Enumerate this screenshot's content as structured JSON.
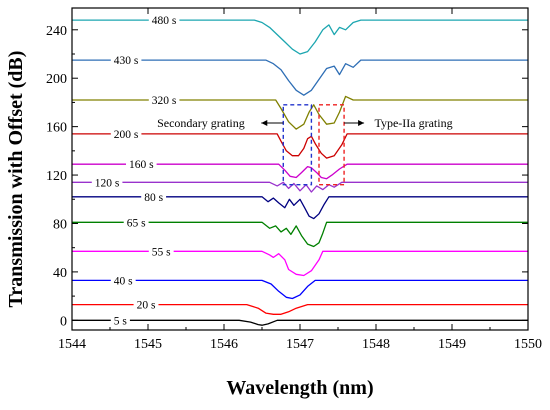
{
  "chart_data": {
    "type": "line",
    "title": "",
    "xlabel": "Wavelength (nm)",
    "ylabel": "Transmission with Offset (dB)",
    "xlim": [
      1544,
      1550
    ],
    "ylim": [
      -8,
      258
    ],
    "xticks": [
      1544,
      1545,
      1546,
      1547,
      1548,
      1549,
      1550
    ],
    "yticks": [
      0,
      40,
      80,
      120,
      160,
      200,
      240
    ],
    "grid": false,
    "legend": "none",
    "series": [
      {
        "name": "5 s",
        "color": "#000000",
        "baseline": 0,
        "label_x": 1544.55,
        "x": [
          1544.0,
          1546.2,
          1546.35,
          1546.45,
          1546.5,
          1546.58,
          1546.7,
          1550.0
        ],
        "y": [
          0,
          0,
          -1.5,
          -3.5,
          -4,
          -3,
          0,
          0
        ]
      },
      {
        "name": "20 s",
        "color": "#ff0000",
        "baseline": 13,
        "label_x": 1544.85,
        "x": [
          1544.0,
          1546.3,
          1546.45,
          1546.55,
          1546.65,
          1546.75,
          1546.85,
          1546.95,
          1547.1,
          1550.0
        ],
        "y": [
          13,
          13,
          10,
          6,
          5,
          5,
          7,
          10,
          13,
          13
        ]
      },
      {
        "name": "40 s",
        "color": "#0000ff",
        "baseline": 33,
        "label_x": 1544.55,
        "x": [
          1544.0,
          1546.5,
          1546.62,
          1546.72,
          1546.82,
          1546.9,
          1547.0,
          1547.1,
          1547.2,
          1550.0
        ],
        "y": [
          33,
          33,
          30,
          24,
          19,
          18,
          21,
          28,
          33,
          33
        ]
      },
      {
        "name": "55 s",
        "color": "#ff00ff",
        "baseline": 57,
        "label_x": 1545.05,
        "x": [
          1544.0,
          1546.5,
          1546.6,
          1546.65,
          1546.72,
          1546.8,
          1546.85,
          1546.95,
          1547.05,
          1547.15,
          1547.25,
          1547.3,
          1550.0
        ],
        "y": [
          57,
          57,
          54,
          52,
          55,
          50,
          42,
          38,
          37,
          41,
          50,
          57,
          57
        ]
      },
      {
        "name": "65 s",
        "color": "#008000",
        "baseline": 81,
        "label_x": 1544.72,
        "x": [
          1544.0,
          1546.5,
          1546.6,
          1546.68,
          1546.75,
          1546.82,
          1546.88,
          1546.95,
          1547.02,
          1547.1,
          1547.18,
          1547.25,
          1547.3,
          1547.35,
          1550.0
        ],
        "y": [
          81,
          81,
          76,
          78,
          73,
          76,
          71,
          78,
          70,
          63,
          61,
          64,
          72,
          81,
          81
        ]
      },
      {
        "name": "80 s",
        "color": "#000080",
        "baseline": 102,
        "label_x": 1544.95,
        "x": [
          1544.0,
          1546.5,
          1546.58,
          1546.65,
          1546.72,
          1546.8,
          1546.86,
          1546.92,
          1547.0,
          1547.06,
          1547.12,
          1547.18,
          1547.25,
          1547.32,
          1547.38,
          1550.0
        ],
        "y": [
          102,
          102,
          98,
          101,
          97,
          93,
          100,
          95,
          100,
          93,
          86,
          84,
          88,
          96,
          102,
          102
        ]
      },
      {
        "name": "120 s",
        "color": "#9932cc",
        "baseline": 114,
        "label_x": 1544.3,
        "x": [
          1544.0,
          1546.6,
          1546.7,
          1546.78,
          1546.85,
          1546.92,
          1547.0,
          1547.08,
          1547.15,
          1547.22,
          1547.3,
          1547.38,
          1547.45,
          1547.55,
          1550.0
        ],
        "y": [
          114,
          114,
          111,
          114,
          109,
          113,
          107,
          112,
          106,
          111,
          108,
          112,
          110,
          114,
          114
        ]
      },
      {
        "name": "160 s",
        "color": "#cc00cc",
        "baseline": 129,
        "label_x": 1544.75,
        "x": [
          1544.0,
          1546.72,
          1546.8,
          1546.87,
          1546.95,
          1547.02,
          1547.1,
          1547.15,
          1547.22,
          1547.28,
          1547.35,
          1547.42,
          1547.52,
          1547.62,
          1550.0
        ],
        "y": [
          129,
          129,
          124,
          119,
          118,
          122,
          127,
          126,
          122,
          118,
          117,
          120,
          125,
          129,
          129
        ]
      },
      {
        "name": "200 s",
        "color": "#cc0000",
        "baseline": 154,
        "label_x": 1544.55,
        "x": [
          1544.0,
          1546.7,
          1546.75,
          1546.82,
          1546.9,
          1546.98,
          1547.05,
          1547.1,
          1547.15,
          1547.2,
          1547.28,
          1547.35,
          1547.45,
          1547.55,
          1547.62,
          1550.0
        ],
        "y": [
          154,
          154,
          148,
          140,
          136,
          136,
          142,
          150,
          152,
          146,
          138,
          134,
          136,
          145,
          154,
          154
        ]
      },
      {
        "name": "320 s",
        "color": "#808000",
        "baseline": 182,
        "label_x": 1545.05,
        "x": [
          1544.0,
          1546.68,
          1546.75,
          1546.85,
          1546.95,
          1547.05,
          1547.12,
          1547.18,
          1547.25,
          1547.35,
          1547.45,
          1547.52,
          1547.6,
          1547.7,
          1550.0
        ],
        "y": [
          182,
          182,
          175,
          164,
          158,
          162,
          172,
          178,
          170,
          162,
          163,
          172,
          185,
          182,
          182
        ]
      },
      {
        "name": "430 s",
        "color": "#2e6eb5",
        "baseline": 215,
        "label_x": 1544.55,
        "x": [
          1544.0,
          1546.55,
          1546.65,
          1546.75,
          1546.85,
          1546.95,
          1547.05,
          1547.15,
          1547.25,
          1547.35,
          1547.45,
          1547.52,
          1547.6,
          1547.7,
          1547.8,
          1550.0
        ],
        "y": [
          215,
          215,
          212,
          207,
          198,
          190,
          186,
          190,
          199,
          208,
          210,
          203,
          212,
          209,
          215,
          215
        ]
      },
      {
        "name": "480 s",
        "color": "#1ca6b0",
        "baseline": 248,
        "label_x": 1545.05,
        "x": [
          1544.0,
          1546.4,
          1546.5,
          1546.6,
          1546.7,
          1546.8,
          1546.9,
          1547.0,
          1547.1,
          1547.2,
          1547.3,
          1547.38,
          1547.45,
          1547.52,
          1547.6,
          1547.7,
          1547.8,
          1550.0
        ],
        "y": [
          248,
          248,
          246,
          242,
          236,
          230,
          224,
          220,
          222,
          230,
          240,
          244,
          236,
          242,
          240,
          246,
          248,
          248
        ]
      }
    ],
    "annotations": [
      {
        "text": "Secondary grating",
        "color": "#000000"
      },
      {
        "text": "Type-IIa grating",
        "color": "#000000"
      }
    ],
    "boxes": [
      {
        "name": "secondary-box",
        "x0": 1546.78,
        "x1": 1547.15,
        "y0": 112,
        "y1": 178,
        "color": "#2233cc"
      },
      {
        "name": "type-iia-box",
        "x0": 1547.25,
        "x1": 1547.58,
        "y0": 112,
        "y1": 178,
        "color": "#ee2222"
      }
    ]
  }
}
